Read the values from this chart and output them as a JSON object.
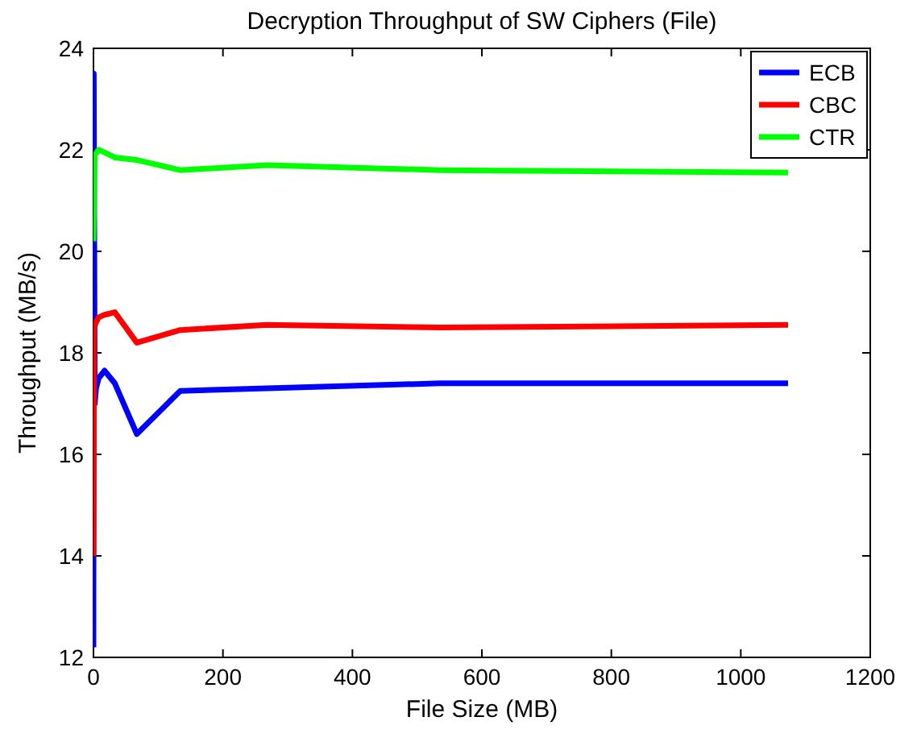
{
  "chart_data": {
    "type": "line",
    "title": "Decryption Throughput of SW Ciphers (File)",
    "xlabel": "File Size (MB)",
    "ylabel": "Throughput (MB/s)",
    "xlim": [
      0,
      1200
    ],
    "xticks": [
      0,
      200,
      400,
      600,
      800,
      1000,
      1200
    ],
    "ylim": [
      12,
      24
    ],
    "yticks": [
      12,
      14,
      16,
      18,
      20,
      22,
      24
    ],
    "grid": false,
    "legend": "top right",
    "marker": "none",
    "line_style": "solid",
    "series": [
      {
        "name": "ECB",
        "color": "#0000ff",
        "x": [
          0,
          0.5,
          2,
          4,
          8,
          17,
          33,
          67,
          134,
          268,
          536,
          1073
        ],
        "values": [
          12.2,
          23.5,
          17.0,
          17.3,
          17.5,
          17.65,
          17.4,
          16.4,
          17.25,
          17.3,
          17.4,
          17.4
        ]
      },
      {
        "name": "CBC",
        "color": "#ff0000",
        "x": [
          0,
          1,
          4,
          8,
          17,
          33,
          67,
          134,
          268,
          536,
          1073
        ],
        "values": [
          14.0,
          18.5,
          18.6,
          18.7,
          18.75,
          18.8,
          18.2,
          18.45,
          18.55,
          18.5,
          18.55
        ]
      },
      {
        "name": "CTR",
        "color": "#00ff00",
        "x": [
          0,
          2,
          8,
          17,
          33,
          67,
          134,
          268,
          536,
          1073
        ],
        "values": [
          20.2,
          21.9,
          22.0,
          21.95,
          21.85,
          21.8,
          21.6,
          21.7,
          21.6,
          21.55
        ]
      }
    ]
  }
}
